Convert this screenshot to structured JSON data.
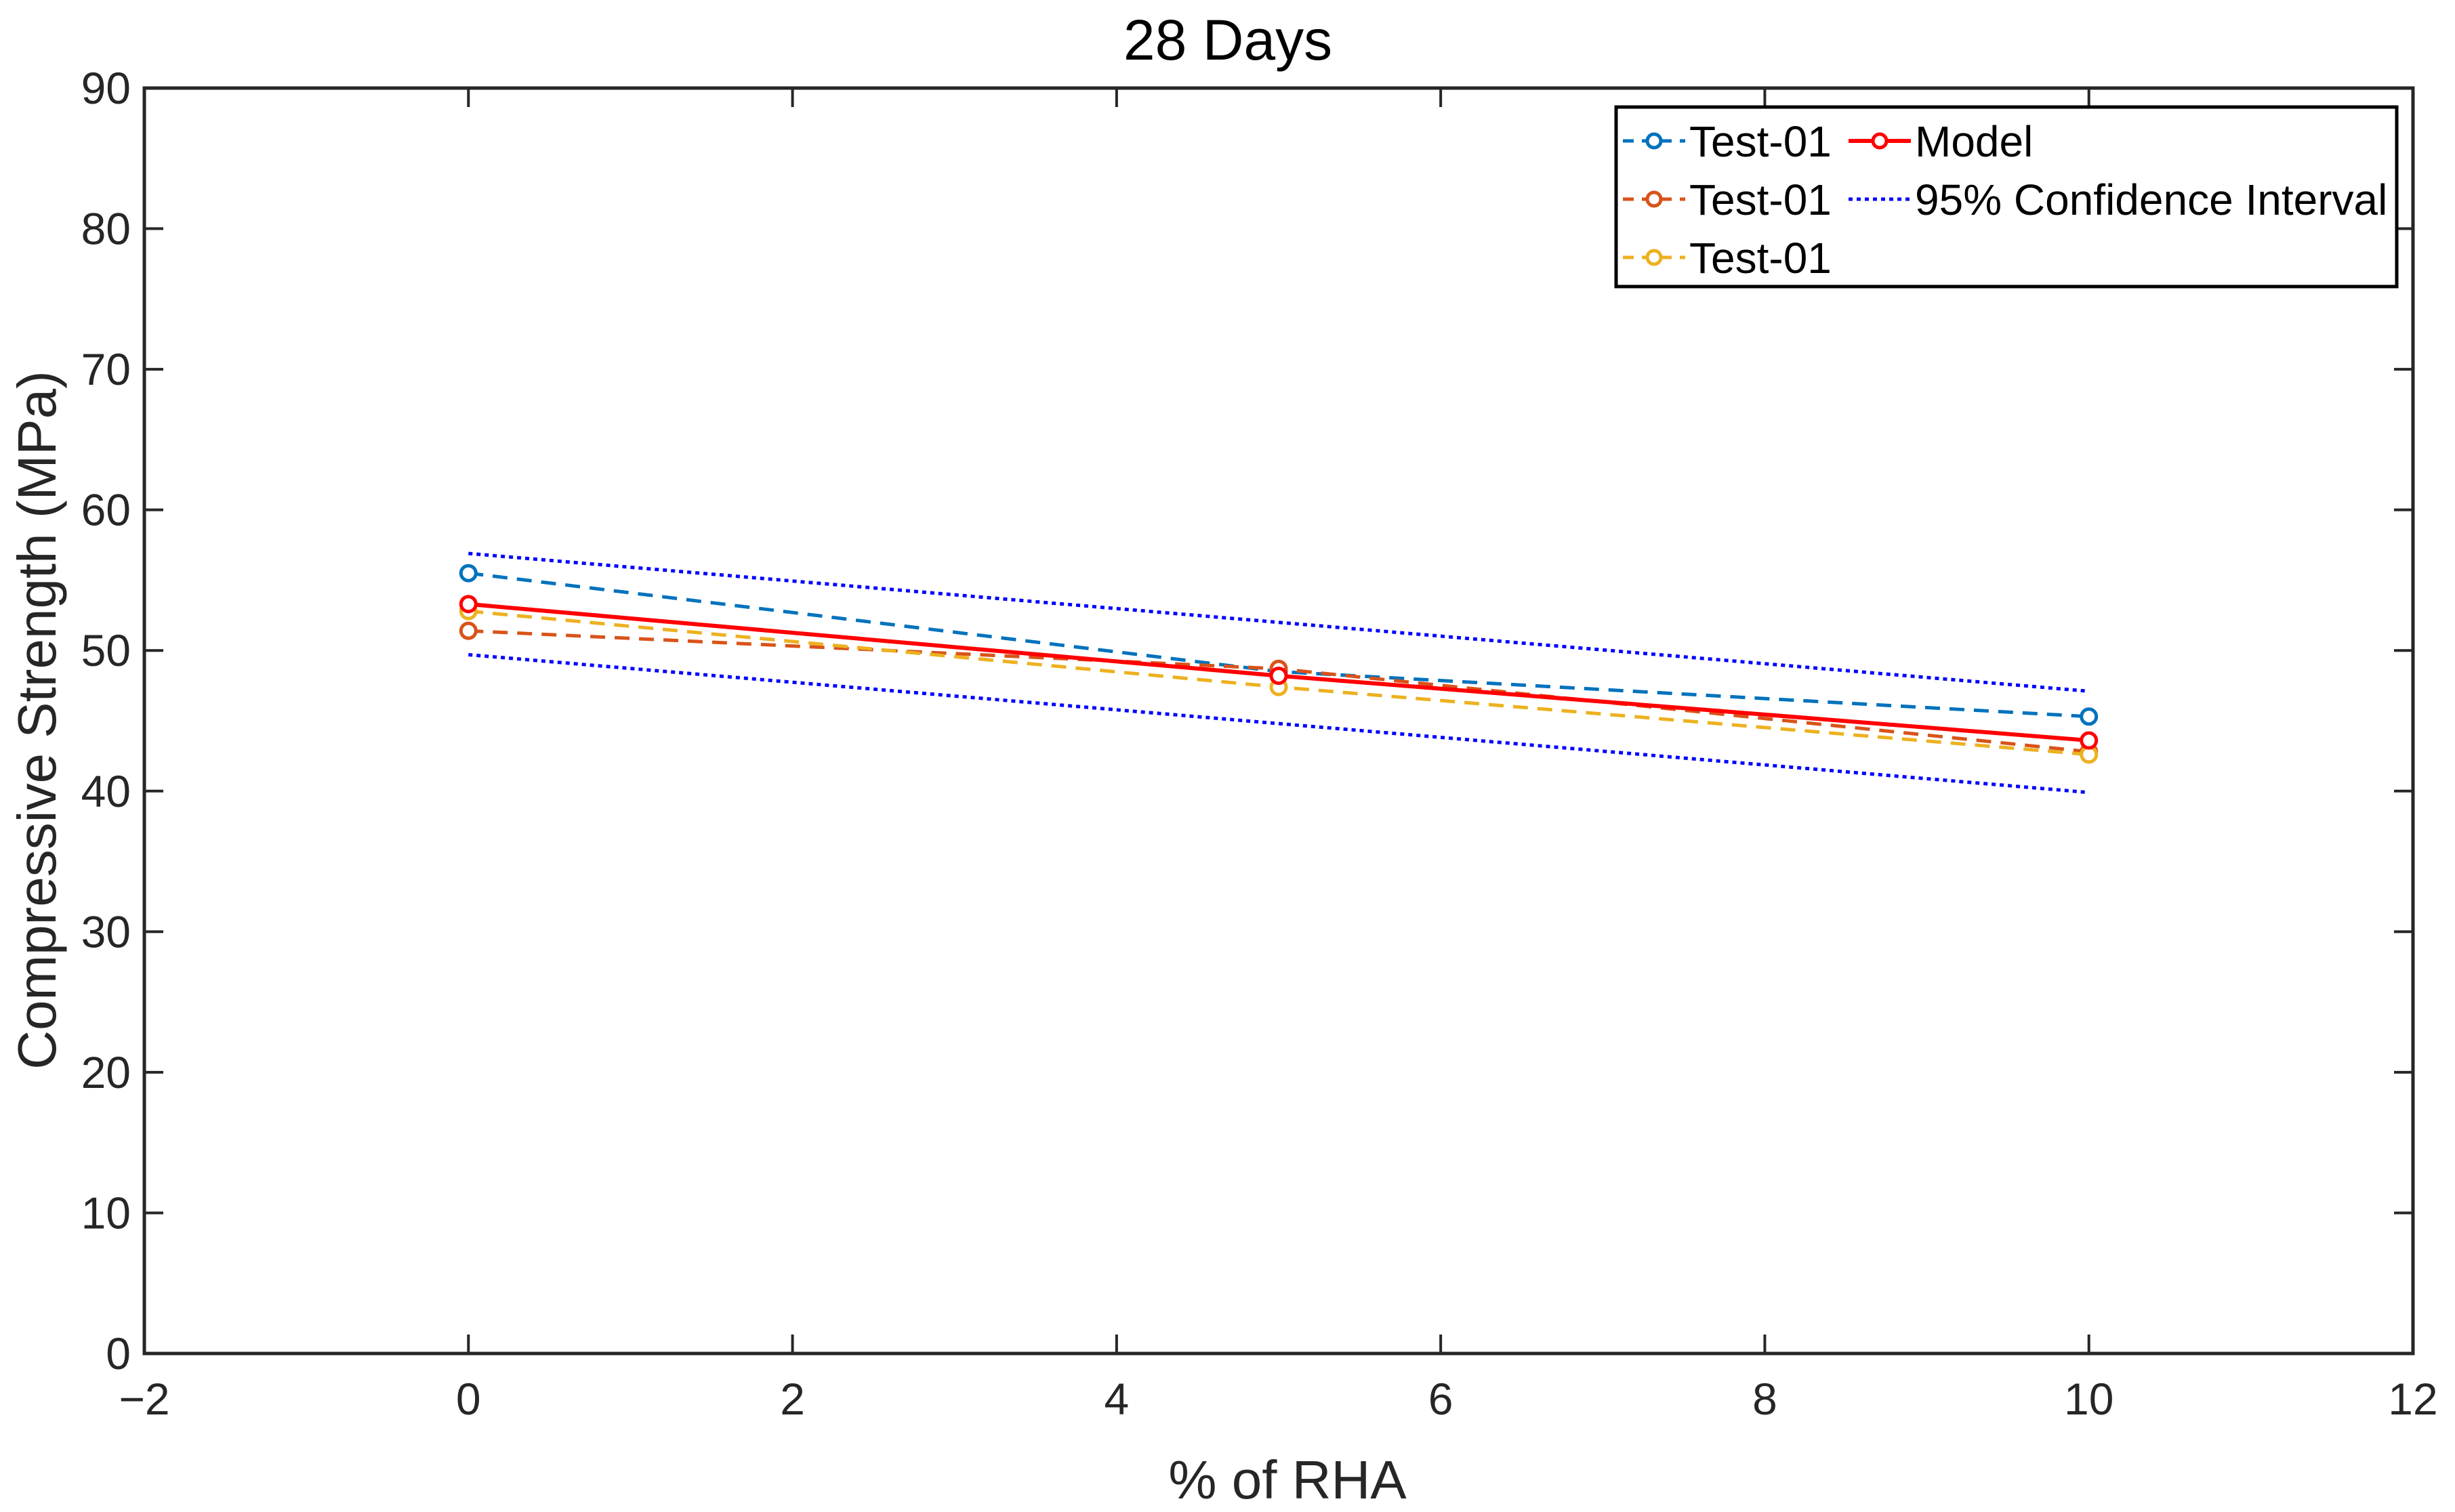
{
  "chart_data": {
    "type": "line",
    "title": "28 Days",
    "xlabel": "% of RHA",
    "ylabel": "Compressive Strength (MPa)",
    "xlim": [
      -2,
      12
    ],
    "ylim": [
      0,
      90
    ],
    "xticks": [
      -2,
      0,
      2,
      4,
      6,
      8,
      10,
      12
    ],
    "yticks": [
      0,
      10,
      20,
      30,
      40,
      50,
      60,
      70,
      80,
      90
    ],
    "xtick_labels": [
      "−2",
      "0",
      "2",
      "4",
      "6",
      "8",
      "10",
      "12"
    ],
    "ytick_labels": [
      "0",
      "10",
      "20",
      "30",
      "40",
      "50",
      "60",
      "70",
      "80",
      "90"
    ],
    "grid": false,
    "legend": {
      "position": "top-right",
      "columns": 2
    },
    "series": [
      {
        "name": "Test-01",
        "x": [
          0,
          5,
          10
        ],
        "values": [
          55.5,
          48.5,
          45.3
        ],
        "color": "#0072BD",
        "style": "dashed",
        "marker": "circle"
      },
      {
        "name": "Test-01",
        "x": [
          0,
          5,
          10
        ],
        "values": [
          51.4,
          48.7,
          42.8
        ],
        "color": "#D95319",
        "style": "dashed",
        "marker": "circle"
      },
      {
        "name": "Test-01",
        "x": [
          0,
          5,
          10
        ],
        "values": [
          52.8,
          47.4,
          42.6
        ],
        "color": "#EDB120",
        "style": "dashed",
        "marker": "circle"
      },
      {
        "name": "Model",
        "x": [
          0,
          5,
          10
        ],
        "values": [
          53.3,
          48.2,
          43.6
        ],
        "color": "#FF0000",
        "style": "solid",
        "marker": "circle"
      },
      {
        "name": "95% Confidence Interval",
        "x": [
          0,
          10
        ],
        "values": [
          56.9,
          47.1
        ],
        "color": "#0000FF",
        "style": "dotted",
        "marker": "none",
        "in_legend": true
      },
      {
        "name": "95% Confidence Interval",
        "x": [
          0,
          10
        ],
        "values": [
          49.7,
          39.9
        ],
        "color": "#0000FF",
        "style": "dotted",
        "marker": "none",
        "in_legend": false
      }
    ]
  }
}
